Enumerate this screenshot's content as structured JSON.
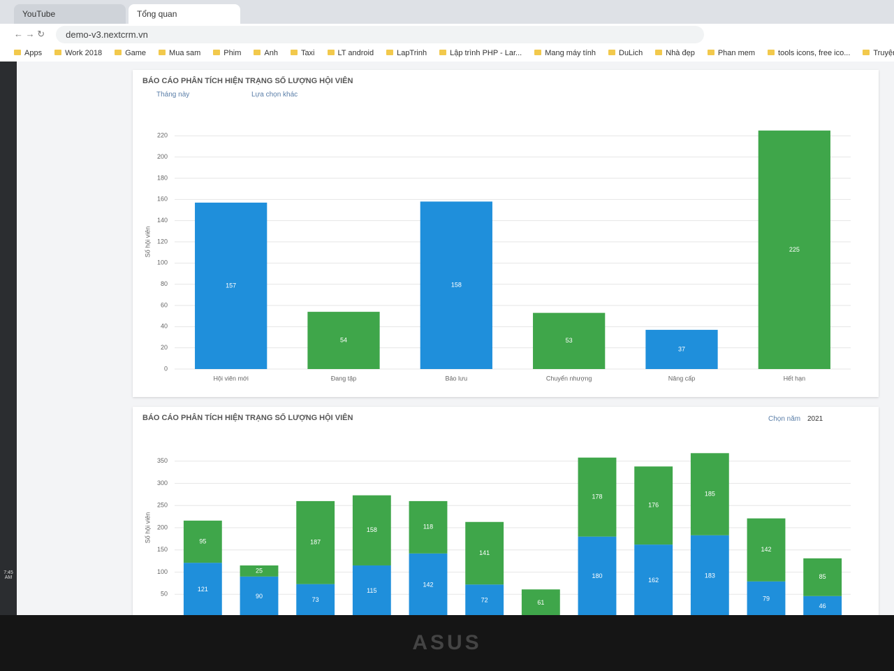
{
  "browser": {
    "tabs": [
      "YouTube",
      "Tổng quan"
    ],
    "url": "demo-v3.nextcrm.vn",
    "bookmarks": [
      "Apps",
      "Work 2018",
      "Game",
      "Mua sam",
      "Phim",
      "Anh",
      "Taxi",
      "LT android",
      "LapTrinh",
      "Lập trình PHP - Lar...",
      "Mang máy tính",
      "DuLich",
      "Nhà đẹp",
      "Phan mem",
      "tools icons, free ico...",
      "Truyện Dragon Ball..."
    ],
    "clock": "7:45 AM"
  },
  "chart_data": [
    {
      "type": "bar",
      "title": "BÁO CÁO PHÂN TÍCH HIỆN TRẠNG SỐ LƯỢNG HỘI VIÊN",
      "filters": [
        "Tháng này",
        "Lựa chọn khác"
      ],
      "y_label": "Số hội viên",
      "categories": [
        "Hội viên mới",
        "Đang tập",
        "Bảo lưu",
        "Chuyển nhượng",
        "Nâng cấp",
        "Hết hạn"
      ],
      "values": [
        157,
        54,
        158,
        53,
        37,
        225
      ],
      "colors": [
        "#1f8fdb",
        "#3fa64a",
        "#1f8fdb",
        "#3fa64a",
        "#1f8fdb",
        "#3fa64a"
      ],
      "ylim": [
        0,
        240
      ],
      "yticks": [
        0,
        20,
        40,
        60,
        80,
        100,
        120,
        140,
        160,
        180,
        200,
        220
      ],
      "grid": true
    },
    {
      "type": "stacked_bar",
      "title": "BÁO CÁO PHÂN TÍCH HIỆN TRẠNG SỐ LƯỢNG HỘI VIÊN",
      "year_label": "Chọn năm",
      "year": 2021,
      "y_label": "Số hội viên",
      "categories": [
        null,
        null,
        null,
        null,
        null,
        null,
        null,
        null,
        null,
        null,
        null,
        null
      ],
      "series": [
        {
          "color": "#1f8fdb",
          "values": [
            121,
            90,
            73,
            115,
            142,
            72,
            null,
            180,
            162,
            183,
            79,
            46
          ]
        },
        {
          "color": "#3fa64a",
          "values": [
            95,
            25,
            187,
            158,
            118,
            141,
            61,
            178,
            176,
            185,
            142,
            85
          ]
        }
      ],
      "ylim": [
        0,
        400
      ],
      "yticks": [
        50,
        100,
        150,
        200,
        250,
        300,
        350
      ],
      "grid": true
    }
  ]
}
